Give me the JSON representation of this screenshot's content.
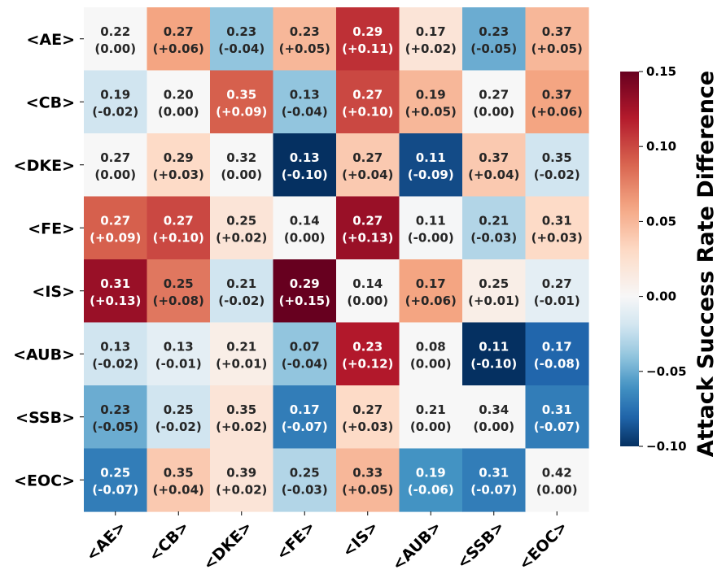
{
  "chart_data": {
    "type": "heatmap",
    "title": "",
    "xlabel": "",
    "ylabel": "",
    "x_categories": [
      "<AE>",
      "<CB>",
      "<DKE>",
      "<FE>",
      "<IS>",
      "<AUB>",
      "<SSB>",
      "<EOC>"
    ],
    "y_categories": [
      "<AE>",
      "<CB>",
      "<DKE>",
      "<FE>",
      "<IS>",
      "<AUB>",
      "<SSB>",
      "<EOC>"
    ],
    "values": [
      [
        0.22,
        0.27,
        0.23,
        0.23,
        0.29,
        0.17,
        0.23,
        0.37
      ],
      [
        0.19,
        0.2,
        0.35,
        0.13,
        0.27,
        0.19,
        0.27,
        0.37
      ],
      [
        0.27,
        0.29,
        0.32,
        0.13,
        0.27,
        0.11,
        0.37,
        0.35
      ],
      [
        0.27,
        0.27,
        0.25,
        0.14,
        0.27,
        0.11,
        0.21,
        0.31
      ],
      [
        0.31,
        0.25,
        0.21,
        0.29,
        0.14,
        0.17,
        0.25,
        0.27
      ],
      [
        0.13,
        0.13,
        0.21,
        0.07,
        0.23,
        0.08,
        0.11,
        0.17
      ],
      [
        0.23,
        0.25,
        0.35,
        0.17,
        0.27,
        0.21,
        0.34,
        0.31
      ],
      [
        0.25,
        0.35,
        0.39,
        0.25,
        0.33,
        0.19,
        0.31,
        0.42
      ]
    ],
    "differences": [
      [
        0.0,
        0.06,
        -0.04,
        0.05,
        0.11,
        0.02,
        -0.05,
        0.05
      ],
      [
        -0.02,
        0.0,
        0.09,
        -0.04,
        0.1,
        0.05,
        0.0,
        0.06
      ],
      [
        0.0,
        0.03,
        0.0,
        -0.1,
        0.04,
        -0.09,
        0.04,
        -0.02
      ],
      [
        0.09,
        0.1,
        0.02,
        0.0,
        0.13,
        -0.001,
        -0.03,
        0.03
      ],
      [
        0.13,
        0.08,
        -0.02,
        0.15,
        0.0,
        0.06,
        0.01,
        -0.01
      ],
      [
        -0.02,
        -0.01,
        0.01,
        -0.04,
        0.12,
        0.0,
        -0.1,
        -0.08
      ],
      [
        -0.05,
        -0.02,
        0.02,
        -0.07,
        0.03,
        0.0,
        0.0,
        -0.07
      ],
      [
        -0.07,
        0.04,
        0.02,
        -0.03,
        0.05,
        -0.06,
        -0.07,
        0.0
      ]
    ],
    "cell_labels": [
      [
        "(0.00)",
        "(+0.06)",
        "(-0.04)",
        "(+0.05)",
        "(+0.11)",
        "(+0.02)",
        "(-0.05)",
        "(+0.05)"
      ],
      [
        "(-0.02)",
        "(0.00)",
        "(+0.09)",
        "(-0.04)",
        "(+0.10)",
        "(+0.05)",
        "(0.00)",
        "(+0.06)"
      ],
      [
        "(0.00)",
        "(+0.03)",
        "(0.00)",
        "(-0.10)",
        "(+0.04)",
        "(-0.09)",
        "(+0.04)",
        "(-0.02)"
      ],
      [
        "(+0.09)",
        "(+0.10)",
        "(+0.02)",
        "(0.00)",
        "(+0.13)",
        "(-0.00)",
        "(-0.03)",
        "(+0.03)"
      ],
      [
        "(+0.13)",
        "(+0.08)",
        "(-0.02)",
        "(+0.15)",
        "(0.00)",
        "(+0.06)",
        "(+0.01)",
        "(-0.01)"
      ],
      [
        "(-0.02)",
        "(-0.01)",
        "(+0.01)",
        "(-0.04)",
        "(+0.12)",
        "(0.00)",
        "(-0.10)",
        "(-0.08)"
      ],
      [
        "(-0.05)",
        "(-0.02)",
        "(+0.02)",
        "(-0.07)",
        "(+0.03)",
        "(0.00)",
        "(0.00)",
        "(-0.07)"
      ],
      [
        "(-0.07)",
        "(+0.04)",
        "(+0.02)",
        "(-0.03)",
        "(+0.05)",
        "(-0.06)",
        "(-0.07)",
        "(0.00)"
      ]
    ],
    "colorbar": {
      "label": "Attack Success Rate Difference",
      "range": [
        -0.1,
        0.15
      ],
      "center": 0.0,
      "ticks": [
        -0.1,
        -0.05,
        0.0,
        0.05,
        0.1,
        0.15
      ],
      "tick_labels": [
        "−0.10",
        "−0.05",
        "0.00",
        "0.05",
        "0.10",
        "0.15"
      ],
      "colormap": "RdBu_r"
    },
    "grid": false
  }
}
